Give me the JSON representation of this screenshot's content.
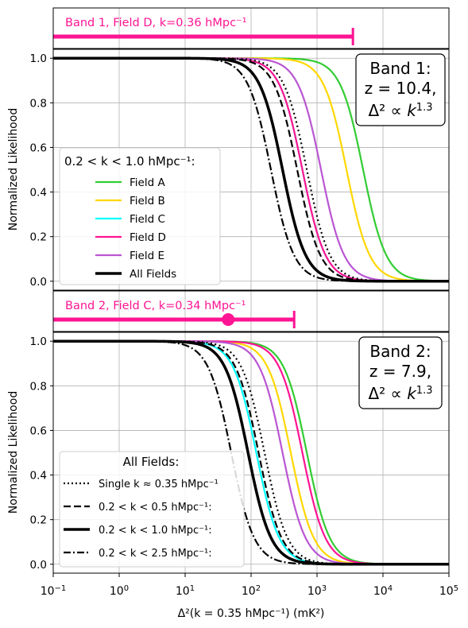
{
  "x_axis": {
    "label": "Δ²(k = 0.35 hMpc⁻¹) (mK²)",
    "scale": "log",
    "xlim": [
      0.1,
      100000
    ],
    "ticks": [
      {
        "value": 0.1,
        "mant": "10",
        "exp": "−1"
      },
      {
        "value": 1,
        "mant": "10",
        "exp": "0"
      },
      {
        "value": 10,
        "mant": "10",
        "exp": "1"
      },
      {
        "value": 100,
        "mant": "10",
        "exp": "2"
      },
      {
        "value": 1000,
        "mant": "10",
        "exp": "3"
      },
      {
        "value": 10000,
        "mant": "10",
        "exp": "4"
      },
      {
        "value": 100000,
        "mant": "10",
        "exp": "5"
      }
    ]
  },
  "colors": {
    "field_a": "#33cc33",
    "field_b": "#ffd700",
    "field_c": "#00ffff",
    "field_d": "#ff1493",
    "field_e": "#ba55d3",
    "all": "#000000",
    "limit_bar": "#ff1493"
  },
  "chart_data": [
    {
      "type": "limit_bar",
      "panel": "band1-limit",
      "label": "Band 1, Field D, k=0.36 hMpc⁻¹",
      "upper_limit": 3500,
      "point": null
    },
    {
      "type": "line",
      "panel": "band1",
      "ylabel": "Normalized Likelihood",
      "ylim": [
        -0.04,
        1.04
      ],
      "yticks": [
        "0.0",
        "0.2",
        "0.4",
        "0.6",
        "0.8",
        "1.0"
      ],
      "grid": true,
      "annotation": [
        "Band 1:",
        "z = 10.4,",
        "Δ² ∝ k^1.3"
      ],
      "legend": {
        "title": "0.2 < k < 1.0 hMpc⁻¹:",
        "placement": "center-left",
        "entries": [
          "Field A",
          "Field B",
          "Field C",
          "Field D",
          "Field E",
          "All Fields"
        ]
      },
      "series": [
        {
          "name": "Field A",
          "color": "#33cc33",
          "style": "solid",
          "half_point": 5000
        },
        {
          "name": "Field B",
          "color": "#ffd700",
          "style": "solid",
          "half_point": 2800
        },
        {
          "name": "Field C",
          "color": "#00ffff",
          "style": "solid",
          "half_point": 600
        },
        {
          "name": "Field D",
          "color": "#ff1493",
          "style": "solid",
          "half_point": 600
        },
        {
          "name": "Field E",
          "color": "#ba55d3",
          "style": "solid",
          "half_point": 1150
        },
        {
          "name": "All Fields",
          "color": "#000000",
          "style": "solid-thick",
          "half_point": 300
        },
        {
          "name": "",
          "color": "#000000",
          "style": "dotted",
          "half_point": 700
        },
        {
          "name": "",
          "color": "#000000",
          "style": "dashed",
          "half_point": 500
        },
        {
          "name": "",
          "color": "#000000",
          "style": "dashdot",
          "half_point": 200
        }
      ]
    },
    {
      "type": "limit_bar",
      "panel": "band2-limit",
      "label": "Band 2, Field C, k=0.34 hMpc⁻¹",
      "upper_limit": 450,
      "point": 45
    },
    {
      "type": "line",
      "panel": "band2",
      "ylabel": "Normalized Likelihood",
      "ylim": [
        -0.04,
        1.04
      ],
      "yticks": [
        "0.0",
        "0.2",
        "0.4",
        "0.6",
        "0.8",
        "1.0"
      ],
      "grid": true,
      "annotation": [
        "Band 2:",
        "z = 7.9,",
        "Δ² ∝ k^1.3"
      ],
      "legend": {
        "title": "All Fields:",
        "placement": "lower-left",
        "entries": [
          "Single k ≈ 0.35 hMpc⁻¹",
          "0.2 < k < 0.5 hMpc⁻¹:",
          "0.2 < k < 1.0 hMpc⁻¹:",
          "0.2 < k < 2.5 hMpc⁻¹:"
        ]
      },
      "series": [
        {
          "name": "",
          "color": "#33cc33",
          "style": "solid",
          "half_point": 700
        },
        {
          "name": "",
          "color": "#ffd700",
          "style": "solid",
          "half_point": 400
        },
        {
          "name": "",
          "color": "#00ffff",
          "style": "solid",
          "half_point": 120
        },
        {
          "name": "",
          "color": "#ff1493",
          "style": "solid",
          "half_point": 600
        },
        {
          "name": "",
          "color": "#ba55d3",
          "style": "solid",
          "half_point": 300
        },
        {
          "name": "0.2 < k < 1.0 hMpc⁻¹:",
          "color": "#000000",
          "style": "solid-thick",
          "half_point": 90
        },
        {
          "name": "Single k ≈ 0.35 hMpc⁻¹",
          "color": "#000000",
          "style": "dotted",
          "half_point": 160
        },
        {
          "name": "0.2 < k < 0.5 hMpc⁻¹:",
          "color": "#000000",
          "style": "dashed",
          "half_point": 130
        },
        {
          "name": "0.2 < k < 2.5 hMpc⁻¹:",
          "color": "#000000",
          "style": "dashdot",
          "half_point": 50
        }
      ]
    }
  ]
}
